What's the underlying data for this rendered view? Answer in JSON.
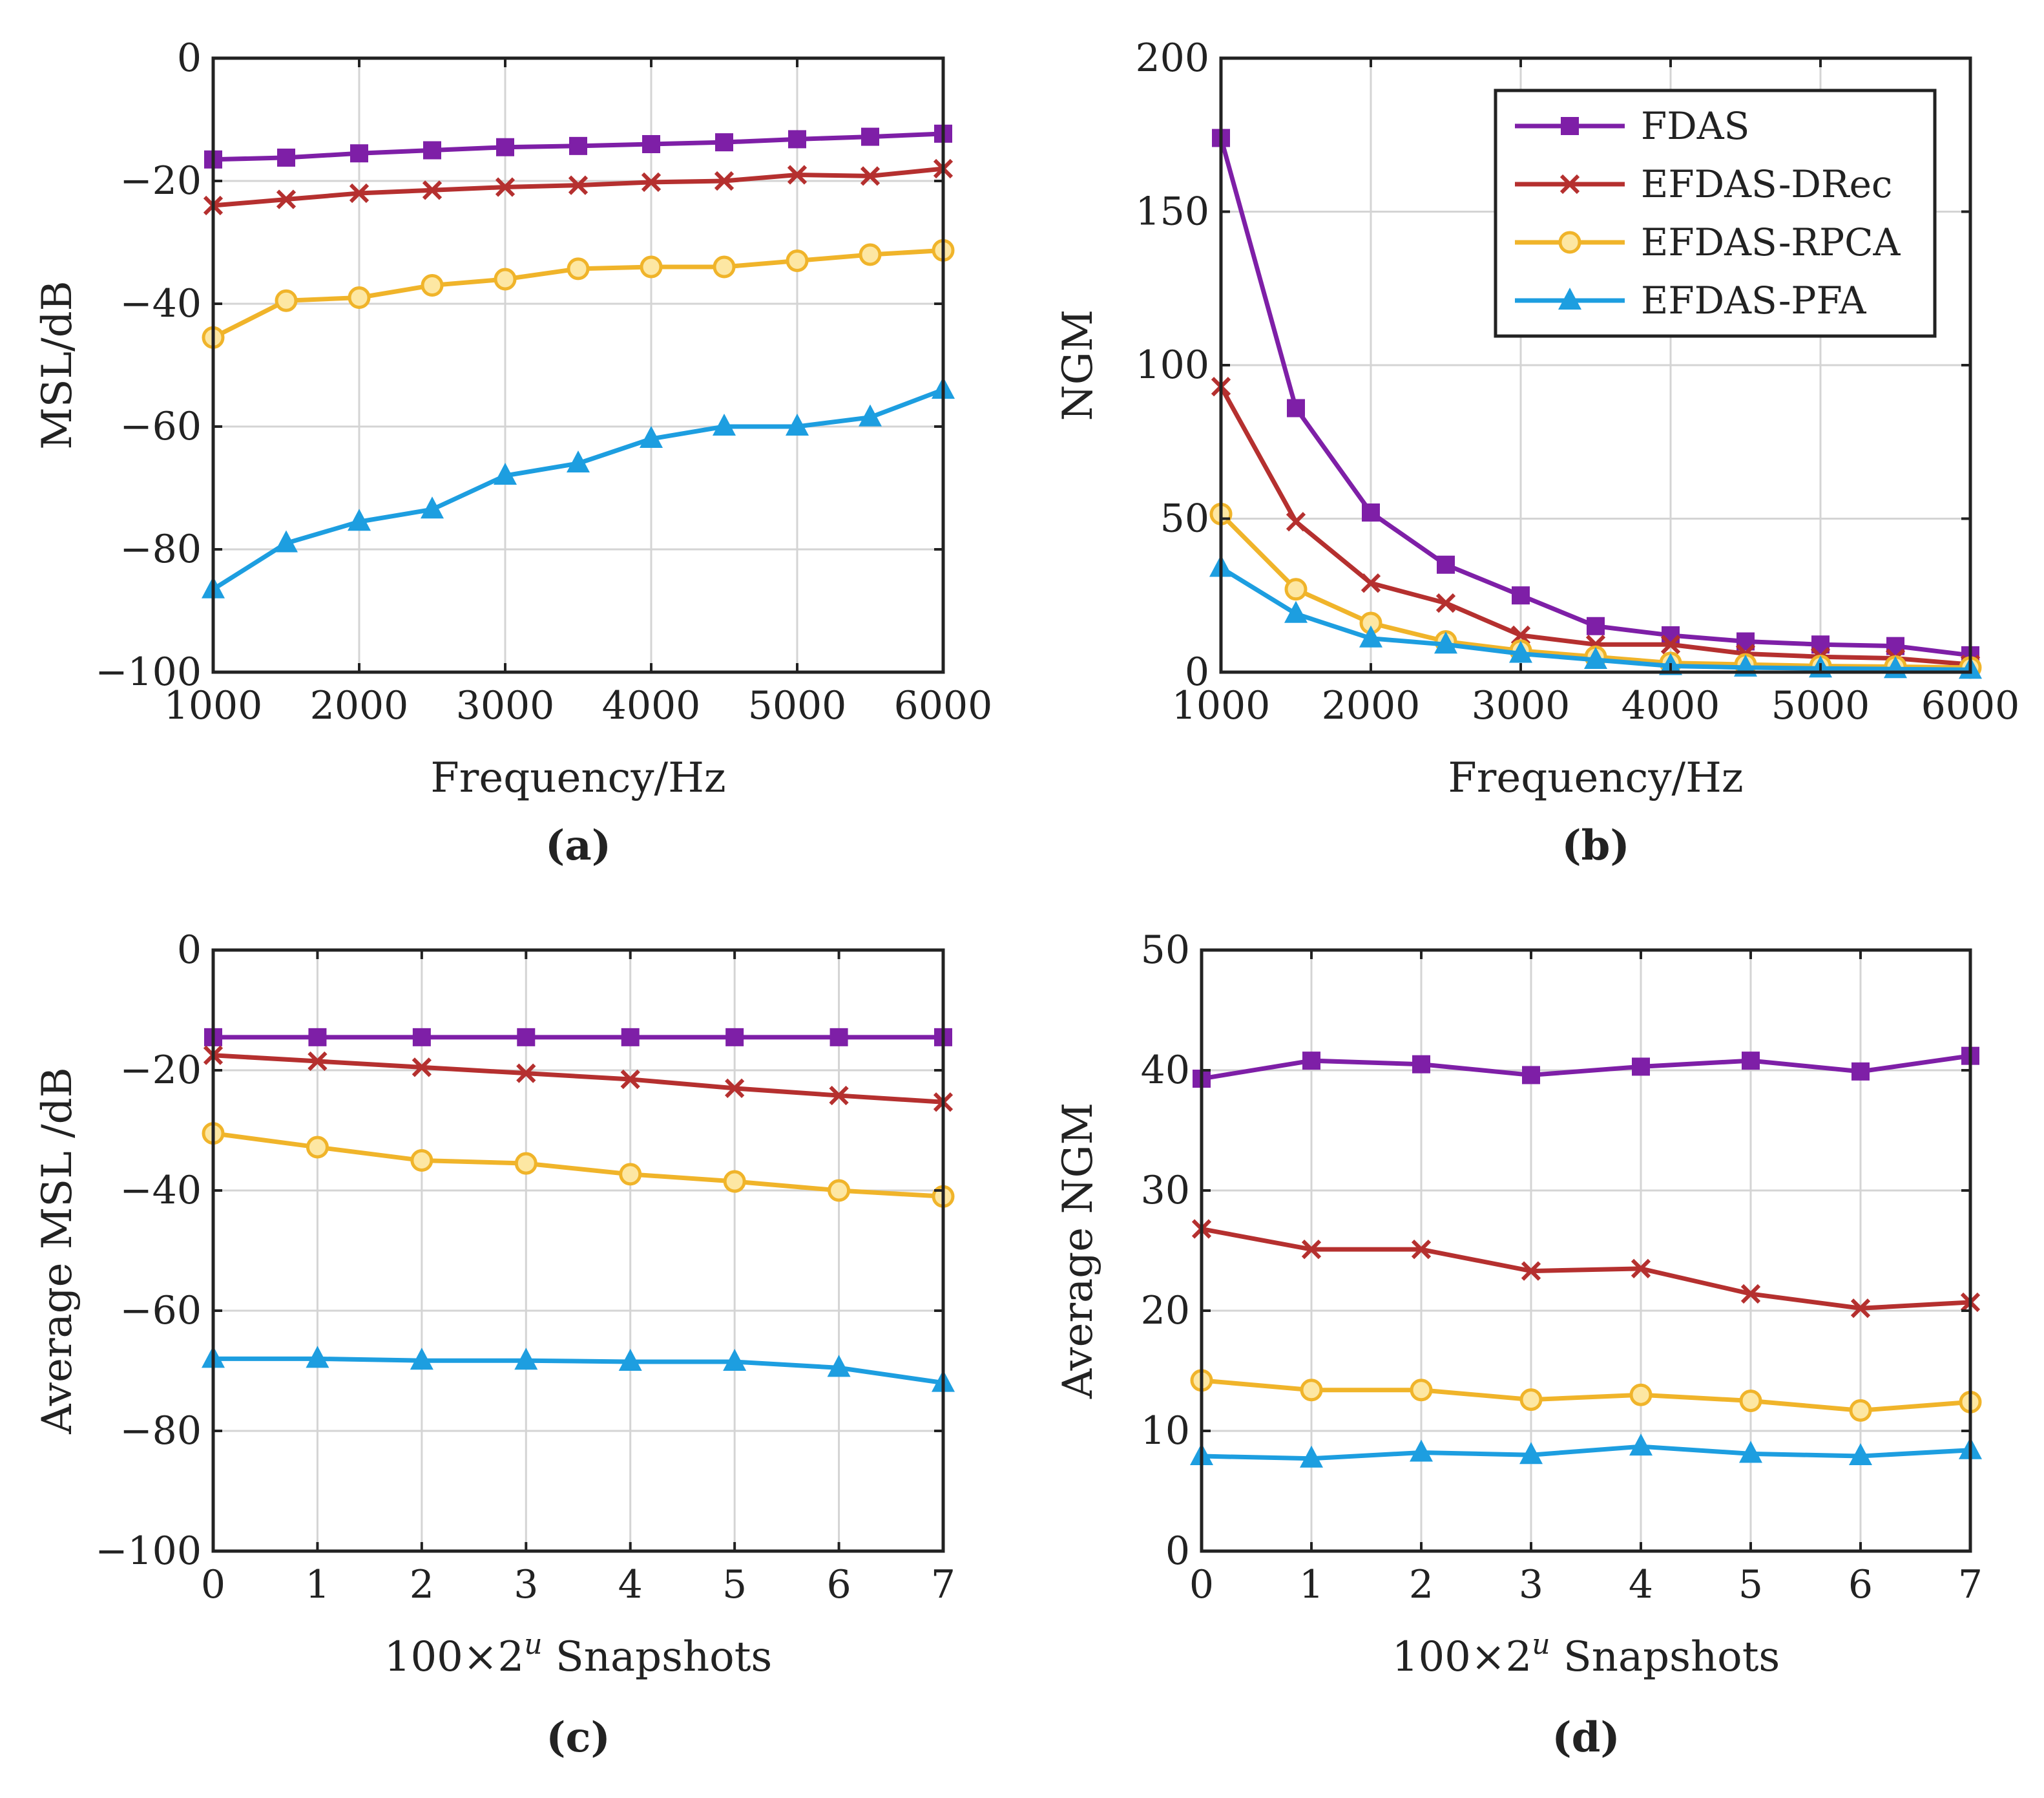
{
  "colors": {
    "FDAS": "#7e1fa7",
    "EFDAS-DRec": "#b5302f",
    "EFDAS-RPCA": "#f0b42a",
    "EFDAS-PFA": "#1d9ee0",
    "grid": "#d4d4d4",
    "axis": "#222222"
  },
  "chart_data": [
    {
      "id": "a",
      "type": "line",
      "caption": "(a)",
      "xlabel": "Frequency/Hz",
      "ylabel": "MSL/dB",
      "xlim": [
        1000,
        6000
      ],
      "ylim": [
        -100,
        0
      ],
      "xticks": [
        1000,
        2000,
        3000,
        4000,
        5000,
        6000
      ],
      "xtick_labels": [
        "1000",
        "2000",
        "3000",
        "4000",
        "5000",
        "6000"
      ],
      "yticks": [
        0,
        -20,
        -40,
        -60,
        -80,
        -100
      ],
      "ytick_labels": [
        "0",
        "−20",
        "−40",
        "−60",
        "−80",
        "−100"
      ],
      "grid": true,
      "x": [
        1000,
        1500,
        2000,
        2500,
        3000,
        3500,
        4000,
        4500,
        5000,
        5500,
        6000
      ],
      "series": [
        {
          "name": "FDAS",
          "marker": "square",
          "values": [
            -16.5,
            -16.2,
            -15.5,
            -15,
            -14.5,
            -14.3,
            -14,
            -13.7,
            -13.2,
            -12.8,
            -12.3
          ]
        },
        {
          "name": "EFDAS-DRec",
          "marker": "x",
          "values": [
            -24,
            -23,
            -22,
            -21.5,
            -21,
            -20.7,
            -20.2,
            -20,
            -19,
            -19.2,
            -18
          ]
        },
        {
          "name": "EFDAS-RPCA",
          "marker": "circle",
          "values": [
            -45.5,
            -39.5,
            -39,
            -37,
            -36,
            -34.3,
            -34,
            -34,
            -33,
            -32,
            -31.3
          ]
        },
        {
          "name": "EFDAS-PFA",
          "marker": "triangle",
          "values": [
            -86.5,
            -79,
            -75.5,
            -73.5,
            -68,
            -66,
            -62,
            -60,
            -60,
            -58.5,
            -54
          ]
        }
      ]
    },
    {
      "id": "b",
      "type": "line",
      "caption": "(b)",
      "xlabel": "Frequency/Hz",
      "ylabel": "NGM",
      "xlim": [
        1000,
        6000
      ],
      "ylim": [
        0,
        200
      ],
      "xticks": [
        1000,
        2000,
        3000,
        4000,
        5000,
        6000
      ],
      "xtick_labels": [
        "1000",
        "2000",
        "3000",
        "4000",
        "5000",
        "6000"
      ],
      "yticks": [
        0,
        50,
        100,
        150,
        200
      ],
      "ytick_labels": [
        "0",
        "50",
        "100",
        "150",
        "200"
      ],
      "grid": true,
      "legend": "top-right",
      "x": [
        1000,
        1500,
        2000,
        2500,
        3000,
        3500,
        4000,
        4500,
        5000,
        5500,
        6000
      ],
      "series": [
        {
          "name": "FDAS",
          "marker": "square",
          "values": [
            174,
            86,
            52,
            35,
            25,
            15,
            12,
            10,
            9,
            8.5,
            5.5
          ]
        },
        {
          "name": "EFDAS-DRec",
          "marker": "x",
          "values": [
            93,
            49,
            29,
            22.5,
            12,
            9,
            9,
            6,
            5,
            4.5,
            2.5
          ]
        },
        {
          "name": "EFDAS-RPCA",
          "marker": "circle",
          "values": [
            51.5,
            27,
            16,
            10,
            7,
            5,
            3,
            2.5,
            2,
            1.8,
            1.5
          ]
        },
        {
          "name": "EFDAS-PFA",
          "marker": "triangle",
          "values": [
            34,
            19,
            11,
            9,
            6,
            4,
            2,
            1.5,
            1.2,
            1,
            0.8
          ]
        }
      ]
    },
    {
      "id": "c",
      "type": "line",
      "caption": "(c)",
      "xlabel_prefix": "100×2",
      "xlabel_sup": "u",
      "xlabel_suffix": " Snapshots",
      "ylabel": "Average MSL /dB",
      "xlim": [
        0,
        7
      ],
      "ylim": [
        -100,
        0
      ],
      "xticks": [
        0,
        1,
        2,
        3,
        4,
        5,
        6,
        7
      ],
      "xtick_labels": [
        "0",
        "1",
        "2",
        "3",
        "4",
        "5",
        "6",
        "7"
      ],
      "yticks": [
        0,
        -20,
        -40,
        -60,
        -80,
        -100
      ],
      "ytick_labels": [
        "0",
        "−20",
        "−40",
        "−60",
        "−80",
        "−100"
      ],
      "grid": true,
      "x": [
        0,
        1,
        2,
        3,
        4,
        5,
        6,
        7
      ],
      "series": [
        {
          "name": "FDAS",
          "marker": "square",
          "values": [
            -14.5,
            -14.5,
            -14.5,
            -14.5,
            -14.5,
            -14.5,
            -14.5,
            -14.5
          ]
        },
        {
          "name": "EFDAS-DRec",
          "marker": "x",
          "values": [
            -17.5,
            -18.5,
            -19.5,
            -20.5,
            -21.5,
            -23,
            -24.2,
            -25.3
          ]
        },
        {
          "name": "EFDAS-RPCA",
          "marker": "circle",
          "values": [
            -30.5,
            -32.8,
            -35,
            -35.5,
            -37.3,
            -38.5,
            -40,
            -41
          ]
        },
        {
          "name": "EFDAS-PFA",
          "marker": "triangle",
          "values": [
            -68,
            -68,
            -68.3,
            -68.3,
            -68.5,
            -68.5,
            -69.5,
            -72
          ]
        }
      ]
    },
    {
      "id": "d",
      "type": "line",
      "caption": "(d)",
      "xlabel_prefix": "100×2",
      "xlabel_sup": "u",
      "xlabel_suffix": " Snapshots",
      "ylabel": "Average NGM",
      "xlim": [
        0,
        7
      ],
      "ylim": [
        0,
        50
      ],
      "xticks": [
        0,
        1,
        2,
        3,
        4,
        5,
        6,
        7
      ],
      "xtick_labels": [
        "0",
        "1",
        "2",
        "3",
        "4",
        "5",
        "6",
        "7"
      ],
      "yticks": [
        0,
        10,
        20,
        30,
        40,
        50
      ],
      "ytick_labels": [
        "0",
        "10",
        "20",
        "30",
        "40",
        "50"
      ],
      "grid": true,
      "x": [
        0,
        1,
        2,
        3,
        4,
        5,
        6,
        7
      ],
      "series": [
        {
          "name": "FDAS",
          "marker": "square",
          "values": [
            39.3,
            40.8,
            40.5,
            39.6,
            40.3,
            40.8,
            39.9,
            41.2
          ]
        },
        {
          "name": "EFDAS-DRec",
          "marker": "x",
          "values": [
            26.8,
            25.1,
            25.1,
            23.3,
            23.5,
            21.4,
            20.2,
            20.7
          ]
        },
        {
          "name": "EFDAS-RPCA",
          "marker": "circle",
          "values": [
            14.2,
            13.4,
            13.4,
            12.6,
            13,
            12.5,
            11.7,
            12.4
          ]
        },
        {
          "name": "EFDAS-PFA",
          "marker": "triangle",
          "values": [
            7.9,
            7.7,
            8.2,
            8,
            8.7,
            8.1,
            7.9,
            8.4
          ]
        }
      ]
    }
  ]
}
